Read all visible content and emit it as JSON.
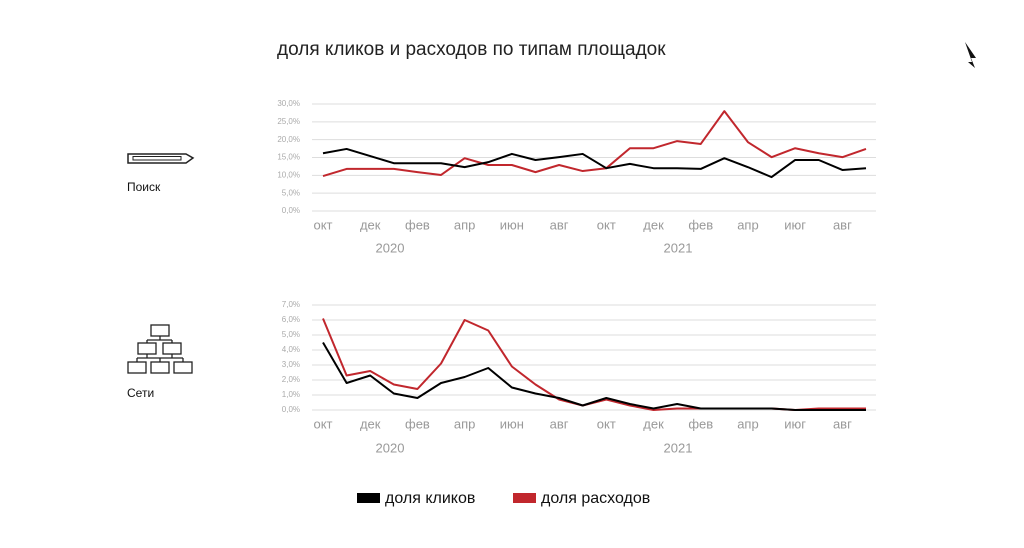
{
  "title": "доля кликов и расходов по типам площадок",
  "chart_data": [
    {
      "type": "line",
      "label": "Поиск",
      "categories": [
        "окт",
        null,
        "дек",
        null,
        "фев",
        null,
        "апр",
        null,
        "июн",
        null,
        "авг",
        null,
        "окт",
        null,
        "дек",
        null,
        "фев",
        null,
        "апр",
        null,
        "июг",
        null,
        "авг",
        null
      ],
      "years": [
        "2020",
        "2021"
      ],
      "ylim": [
        0,
        30
      ],
      "yticks": [
        {
          "value": 0,
          "label": "0,0%"
        },
        {
          "value": 5,
          "label": "5,0%"
        },
        {
          "value": 10,
          "label": "10,0%"
        },
        {
          "value": 15,
          "label": "15,0%"
        },
        {
          "value": 20,
          "label": "20,0%"
        },
        {
          "value": 25,
          "label": "25,0%"
        },
        {
          "value": 30,
          "label": "30,0%"
        }
      ],
      "grid": true,
      "series": [
        {
          "name": "доля кликов",
          "color": "#000000",
          "values": [
            16.2,
            17.4,
            15.4,
            13.4,
            13.4,
            13.4,
            12.3,
            13.7,
            16.0,
            14.3,
            15.1,
            16.0,
            12.0,
            13.2,
            12.0,
            12.0,
            11.8,
            14.8,
            12.3,
            9.5,
            14.3,
            14.3,
            11.5,
            12.0
          ]
        },
        {
          "name": "доля расходов",
          "color": "#c1272d",
          "values": [
            9.8,
            11.8,
            11.8,
            11.8,
            10.9,
            10.1,
            14.8,
            12.9,
            12.9,
            10.9,
            12.9,
            11.2,
            12.0,
            17.6,
            17.6,
            19.6,
            18.8,
            28.0,
            19.3,
            15.1,
            17.6,
            16.2,
            15.1,
            17.4
          ]
        }
      ]
    },
    {
      "type": "line",
      "label": "Сети",
      "categories": [
        "окт",
        null,
        "дек",
        null,
        "фев",
        null,
        "апр",
        null,
        "июн",
        null,
        "авг",
        null,
        "окт",
        null,
        "дек",
        null,
        "фев",
        null,
        "апр",
        null,
        "июг",
        null,
        "авг",
        null
      ],
      "years": [
        "2020",
        "2021"
      ],
      "ylim": [
        0,
        7
      ],
      "yticks": [
        {
          "value": 0,
          "label": "0,0%"
        },
        {
          "value": 1,
          "label": "1,0%"
        },
        {
          "value": 2,
          "label": "2,0%"
        },
        {
          "value": 3,
          "label": "3,0%"
        },
        {
          "value": 4,
          "label": "4,0%"
        },
        {
          "value": 5,
          "label": "5,0%"
        },
        {
          "value": 6,
          "label": "6,0%"
        },
        {
          "value": 7,
          "label": "7,0%"
        }
      ],
      "grid": true,
      "series": [
        {
          "name": "доля кликов",
          "color": "#000000",
          "values": [
            4.5,
            1.8,
            2.3,
            1.1,
            0.8,
            1.8,
            2.2,
            2.8,
            1.5,
            1.1,
            0.8,
            0.3,
            0.8,
            0.4,
            0.1,
            0.4,
            0.1,
            0.1,
            0.1,
            0.1,
            0.0,
            0.0,
            0.0,
            0.0
          ]
        },
        {
          "name": "доля расходов",
          "color": "#c1272d",
          "values": [
            6.1,
            2.3,
            2.6,
            1.7,
            1.4,
            3.1,
            6.0,
            5.3,
            2.9,
            1.7,
            0.7,
            0.3,
            0.7,
            0.3,
            0.0,
            0.1,
            0.1,
            0.1,
            0.1,
            0.1,
            0.0,
            0.1,
            0.1,
            0.1
          ]
        }
      ]
    }
  ]
}
